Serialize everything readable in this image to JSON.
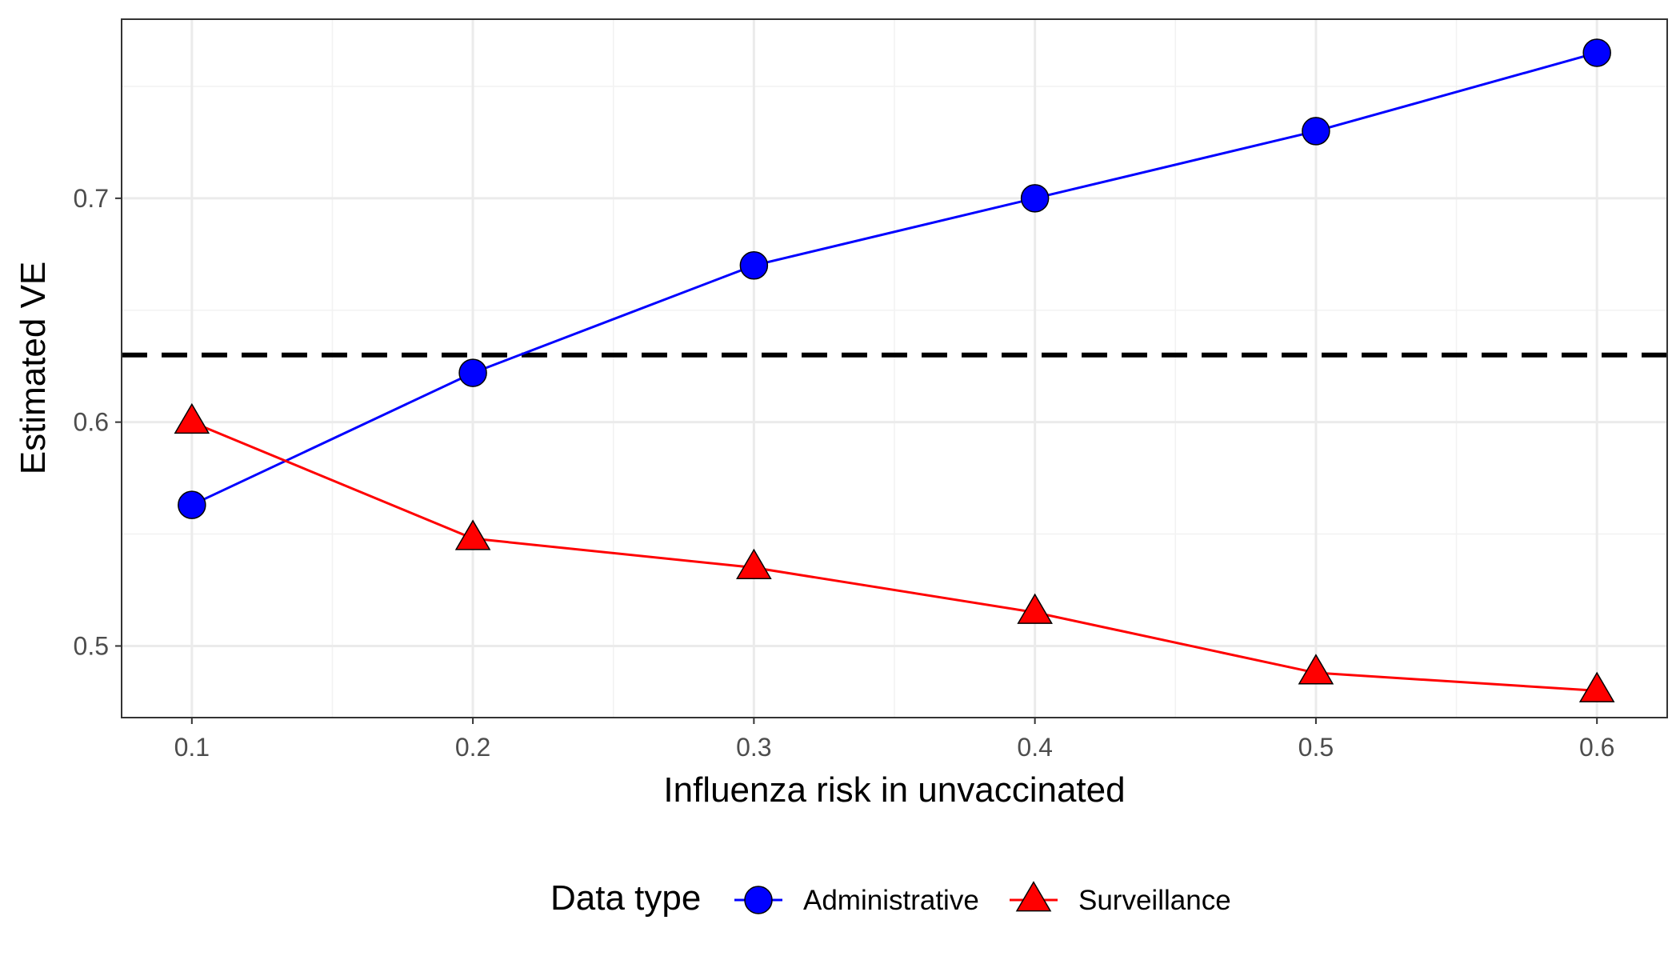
{
  "chart_data": {
    "type": "line",
    "title": "",
    "xlabel": "Influenza risk in unvaccinated",
    "ylabel": "Estimated VE",
    "x": [
      0.1,
      0.2,
      0.3,
      0.4,
      0.5,
      0.6
    ],
    "x_ticks": [
      "0.1",
      "0.2",
      "0.3",
      "0.4",
      "0.5",
      "0.6"
    ],
    "y_ticks": [
      "0.5",
      "0.6",
      "0.7"
    ],
    "xlim": [
      0.075,
      0.625
    ],
    "ylim": [
      0.468,
      0.78
    ],
    "grid": true,
    "reference_line": {
      "y": 0.63,
      "style": "dashed",
      "color": "#000000"
    },
    "legend": {
      "title": "Data type",
      "position": "bottom"
    },
    "series": [
      {
        "name": "Administrative",
        "color": "#0000ff",
        "marker": "circle",
        "values": [
          0.563,
          0.622,
          0.67,
          0.7,
          0.73,
          0.765
        ]
      },
      {
        "name": "Surveillance",
        "color": "#ff0000",
        "marker": "triangle",
        "values": [
          0.6,
          0.548,
          0.535,
          0.515,
          0.488,
          0.48
        ]
      }
    ]
  }
}
